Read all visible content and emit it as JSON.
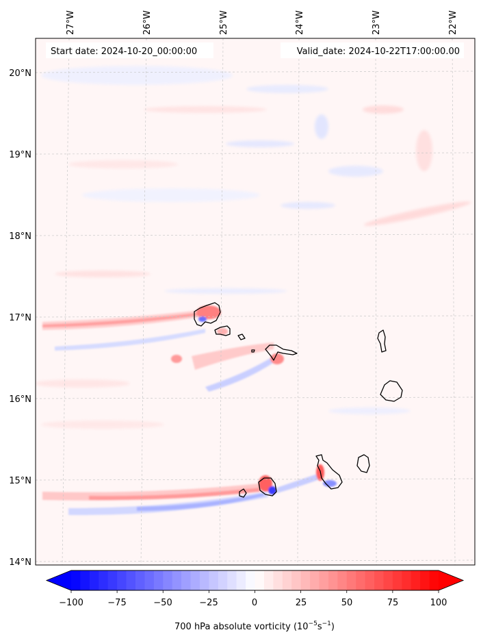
{
  "header": {
    "start_date": "Start date: 2024-10-20_00:00:00",
    "valid_date": "Valid_date: 2024-10-22T17:00:00.00"
  },
  "map": {
    "lon_labels": [
      "27°W",
      "26°W",
      "25°W",
      "24°W",
      "23°W",
      "22°W"
    ],
    "lat_labels": [
      "20°N",
      "19°N",
      "18°N",
      "17°N",
      "16°N",
      "15°N",
      "14°N"
    ],
    "gridlines": true,
    "lon_range": [
      -27.35,
      -21.9
    ],
    "lat_range": [
      13.95,
      20.45
    ]
  },
  "colorbar": {
    "ticks": [
      "−100",
      "−75",
      "−50",
      "−25",
      "0",
      "25",
      "50",
      "75",
      "100"
    ],
    "min": -100,
    "max": 100,
    "extend": "both",
    "colormap": "bwr",
    "title": "700 hPa absolute vorticity (10",
    "title_sup1": "−5",
    "title_mid": "s",
    "title_sup2": "−1",
    "title_end": ")"
  },
  "colors": {
    "negative": "#0000ff",
    "positive": "#ff0000",
    "background_field": "#fff6f6",
    "coastline": "#000000"
  }
}
